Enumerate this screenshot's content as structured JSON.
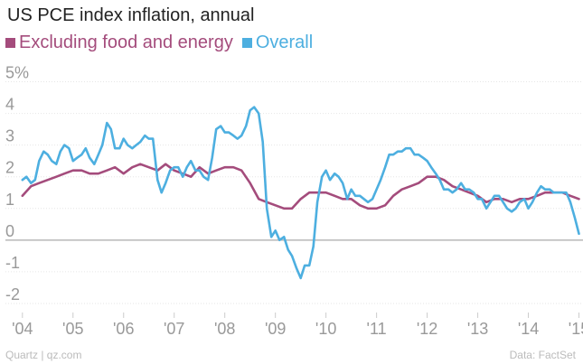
{
  "chart_data": {
    "type": "line",
    "title": "US PCE index inflation, annual",
    "xlabel": "",
    "ylabel": "",
    "y_ticks": [
      5,
      4,
      3,
      2,
      1,
      0,
      -1,
      -2
    ],
    "y_tick_labels": [
      "5%",
      "4",
      "3",
      "2",
      "1",
      "0",
      "-1",
      "-2"
    ],
    "ylim": [
      -2.4,
      5.3
    ],
    "x_ticks": [
      2004,
      2005,
      2006,
      2007,
      2008,
      2009,
      2010,
      2011,
      2012,
      2013,
      2014,
      2015
    ],
    "x_tick_labels": [
      "'04",
      "'05",
      "'06",
      "'07",
      "'08",
      "'09",
      "'10",
      "'11",
      "'12",
      "'13",
      "'14",
      "'15"
    ],
    "xlim": [
      2003.95,
      2015.08
    ],
    "grid": true,
    "legend_position": "top-left",
    "series": [
      {
        "name": "Excluding food and energy",
        "color": "#a44c7c",
        "x": [
          2004.0,
          2004.17,
          2004.33,
          2004.5,
          2004.67,
          2004.83,
          2005.0,
          2005.17,
          2005.33,
          2005.5,
          2005.67,
          2005.83,
          2006.0,
          2006.17,
          2006.33,
          2006.5,
          2006.67,
          2006.83,
          2007.0,
          2007.17,
          2007.33,
          2007.5,
          2007.67,
          2007.83,
          2008.0,
          2008.17,
          2008.33,
          2008.5,
          2008.67,
          2008.83,
          2009.0,
          2009.17,
          2009.33,
          2009.5,
          2009.67,
          2009.83,
          2010.0,
          2010.17,
          2010.33,
          2010.5,
          2010.67,
          2010.83,
          2011.0,
          2011.17,
          2011.33,
          2011.5,
          2011.67,
          2011.83,
          2012.0,
          2012.17,
          2012.33,
          2012.5,
          2012.67,
          2012.83,
          2013.0,
          2013.17,
          2013.33,
          2013.5,
          2013.67,
          2013.83,
          2014.0,
          2014.17,
          2014.33,
          2014.5,
          2014.67,
          2014.83,
          2015.0
        ],
        "values": [
          1.4,
          1.7,
          1.8,
          1.9,
          2.0,
          2.1,
          2.2,
          2.2,
          2.1,
          2.1,
          2.2,
          2.3,
          2.1,
          2.3,
          2.4,
          2.3,
          2.2,
          2.4,
          2.2,
          2.1,
          2.0,
          2.3,
          2.1,
          2.2,
          2.3,
          2.3,
          2.2,
          1.8,
          1.3,
          1.2,
          1.1,
          1.0,
          1.0,
          1.3,
          1.5,
          1.5,
          1.5,
          1.4,
          1.3,
          1.3,
          1.1,
          1.0,
          1.0,
          1.1,
          1.4,
          1.6,
          1.7,
          1.8,
          2.0,
          2.0,
          1.9,
          1.7,
          1.6,
          1.5,
          1.4,
          1.2,
          1.3,
          1.3,
          1.2,
          1.3,
          1.3,
          1.4,
          1.5,
          1.5,
          1.5,
          1.4,
          1.3
        ]
      },
      {
        "name": "Overall",
        "color": "#4dafe0",
        "x": [
          2004.0,
          2004.08,
          2004.17,
          2004.25,
          2004.33,
          2004.42,
          2004.5,
          2004.58,
          2004.67,
          2004.75,
          2004.83,
          2004.92,
          2005.0,
          2005.08,
          2005.17,
          2005.25,
          2005.33,
          2005.42,
          2005.5,
          2005.58,
          2005.67,
          2005.75,
          2005.83,
          2005.92,
          2006.0,
          2006.08,
          2006.17,
          2006.25,
          2006.33,
          2006.42,
          2006.5,
          2006.58,
          2006.67,
          2006.75,
          2006.83,
          2006.92,
          2007.0,
          2007.08,
          2007.17,
          2007.25,
          2007.33,
          2007.42,
          2007.5,
          2007.58,
          2007.67,
          2007.75,
          2007.83,
          2007.92,
          2008.0,
          2008.08,
          2008.17,
          2008.25,
          2008.33,
          2008.42,
          2008.5,
          2008.58,
          2008.67,
          2008.75,
          2008.83,
          2008.92,
          2009.0,
          2009.08,
          2009.17,
          2009.25,
          2009.33,
          2009.42,
          2009.5,
          2009.58,
          2009.67,
          2009.75,
          2009.83,
          2009.92,
          2010.0,
          2010.08,
          2010.17,
          2010.25,
          2010.33,
          2010.42,
          2010.5,
          2010.58,
          2010.67,
          2010.75,
          2010.83,
          2010.92,
          2011.0,
          2011.08,
          2011.17,
          2011.25,
          2011.33,
          2011.42,
          2011.5,
          2011.58,
          2011.67,
          2011.75,
          2011.83,
          2011.92,
          2012.0,
          2012.08,
          2012.17,
          2012.25,
          2012.33,
          2012.42,
          2012.5,
          2012.58,
          2012.67,
          2012.75,
          2012.83,
          2012.92,
          2013.0,
          2013.08,
          2013.17,
          2013.25,
          2013.33,
          2013.42,
          2013.5,
          2013.58,
          2013.67,
          2013.75,
          2013.83,
          2013.92,
          2014.0,
          2014.08,
          2014.17,
          2014.25,
          2014.33,
          2014.42,
          2014.5,
          2014.58,
          2014.67,
          2014.75,
          2014.83,
          2014.92,
          2015.0
        ],
        "values": [
          1.9,
          2.0,
          1.8,
          1.9,
          2.5,
          2.8,
          2.7,
          2.5,
          2.4,
          2.8,
          3.0,
          2.9,
          2.5,
          2.6,
          2.7,
          2.9,
          2.6,
          2.4,
          2.7,
          3.0,
          3.7,
          3.5,
          2.9,
          2.9,
          3.2,
          3.0,
          2.9,
          3.0,
          3.1,
          3.3,
          3.2,
          3.2,
          1.9,
          1.5,
          1.8,
          2.2,
          2.3,
          2.3,
          2.0,
          2.3,
          2.5,
          2.2,
          2.2,
          2.0,
          1.9,
          2.6,
          3.5,
          3.6,
          3.4,
          3.4,
          3.3,
          3.2,
          3.3,
          3.6,
          4.1,
          4.2,
          4.0,
          3.1,
          1.0,
          0.1,
          0.3,
          0.0,
          0.1,
          -0.3,
          -0.5,
          -0.9,
          -1.2,
          -0.8,
          -0.8,
          -0.2,
          1.2,
          2.0,
          2.2,
          1.9,
          2.1,
          2.0,
          1.8,
          1.3,
          1.6,
          1.4,
          1.4,
          1.3,
          1.2,
          1.3,
          1.6,
          1.9,
          2.3,
          2.7,
          2.7,
          2.8,
          2.8,
          2.9,
          2.9,
          2.7,
          2.7,
          2.6,
          2.5,
          2.3,
          2.1,
          1.9,
          1.6,
          1.6,
          1.5,
          1.6,
          1.8,
          1.6,
          1.6,
          1.5,
          1.3,
          1.3,
          1.0,
          1.2,
          1.4,
          1.4,
          1.2,
          1.0,
          0.9,
          1.0,
          1.2,
          1.3,
          1.0,
          1.2,
          1.5,
          1.7,
          1.6,
          1.6,
          1.5,
          1.5,
          1.5,
          1.5,
          1.2,
          0.7,
          0.2
        ]
      }
    ]
  },
  "footer": {
    "source_left": "Quartz | qz.com",
    "source_right": "Data: FactSet"
  }
}
